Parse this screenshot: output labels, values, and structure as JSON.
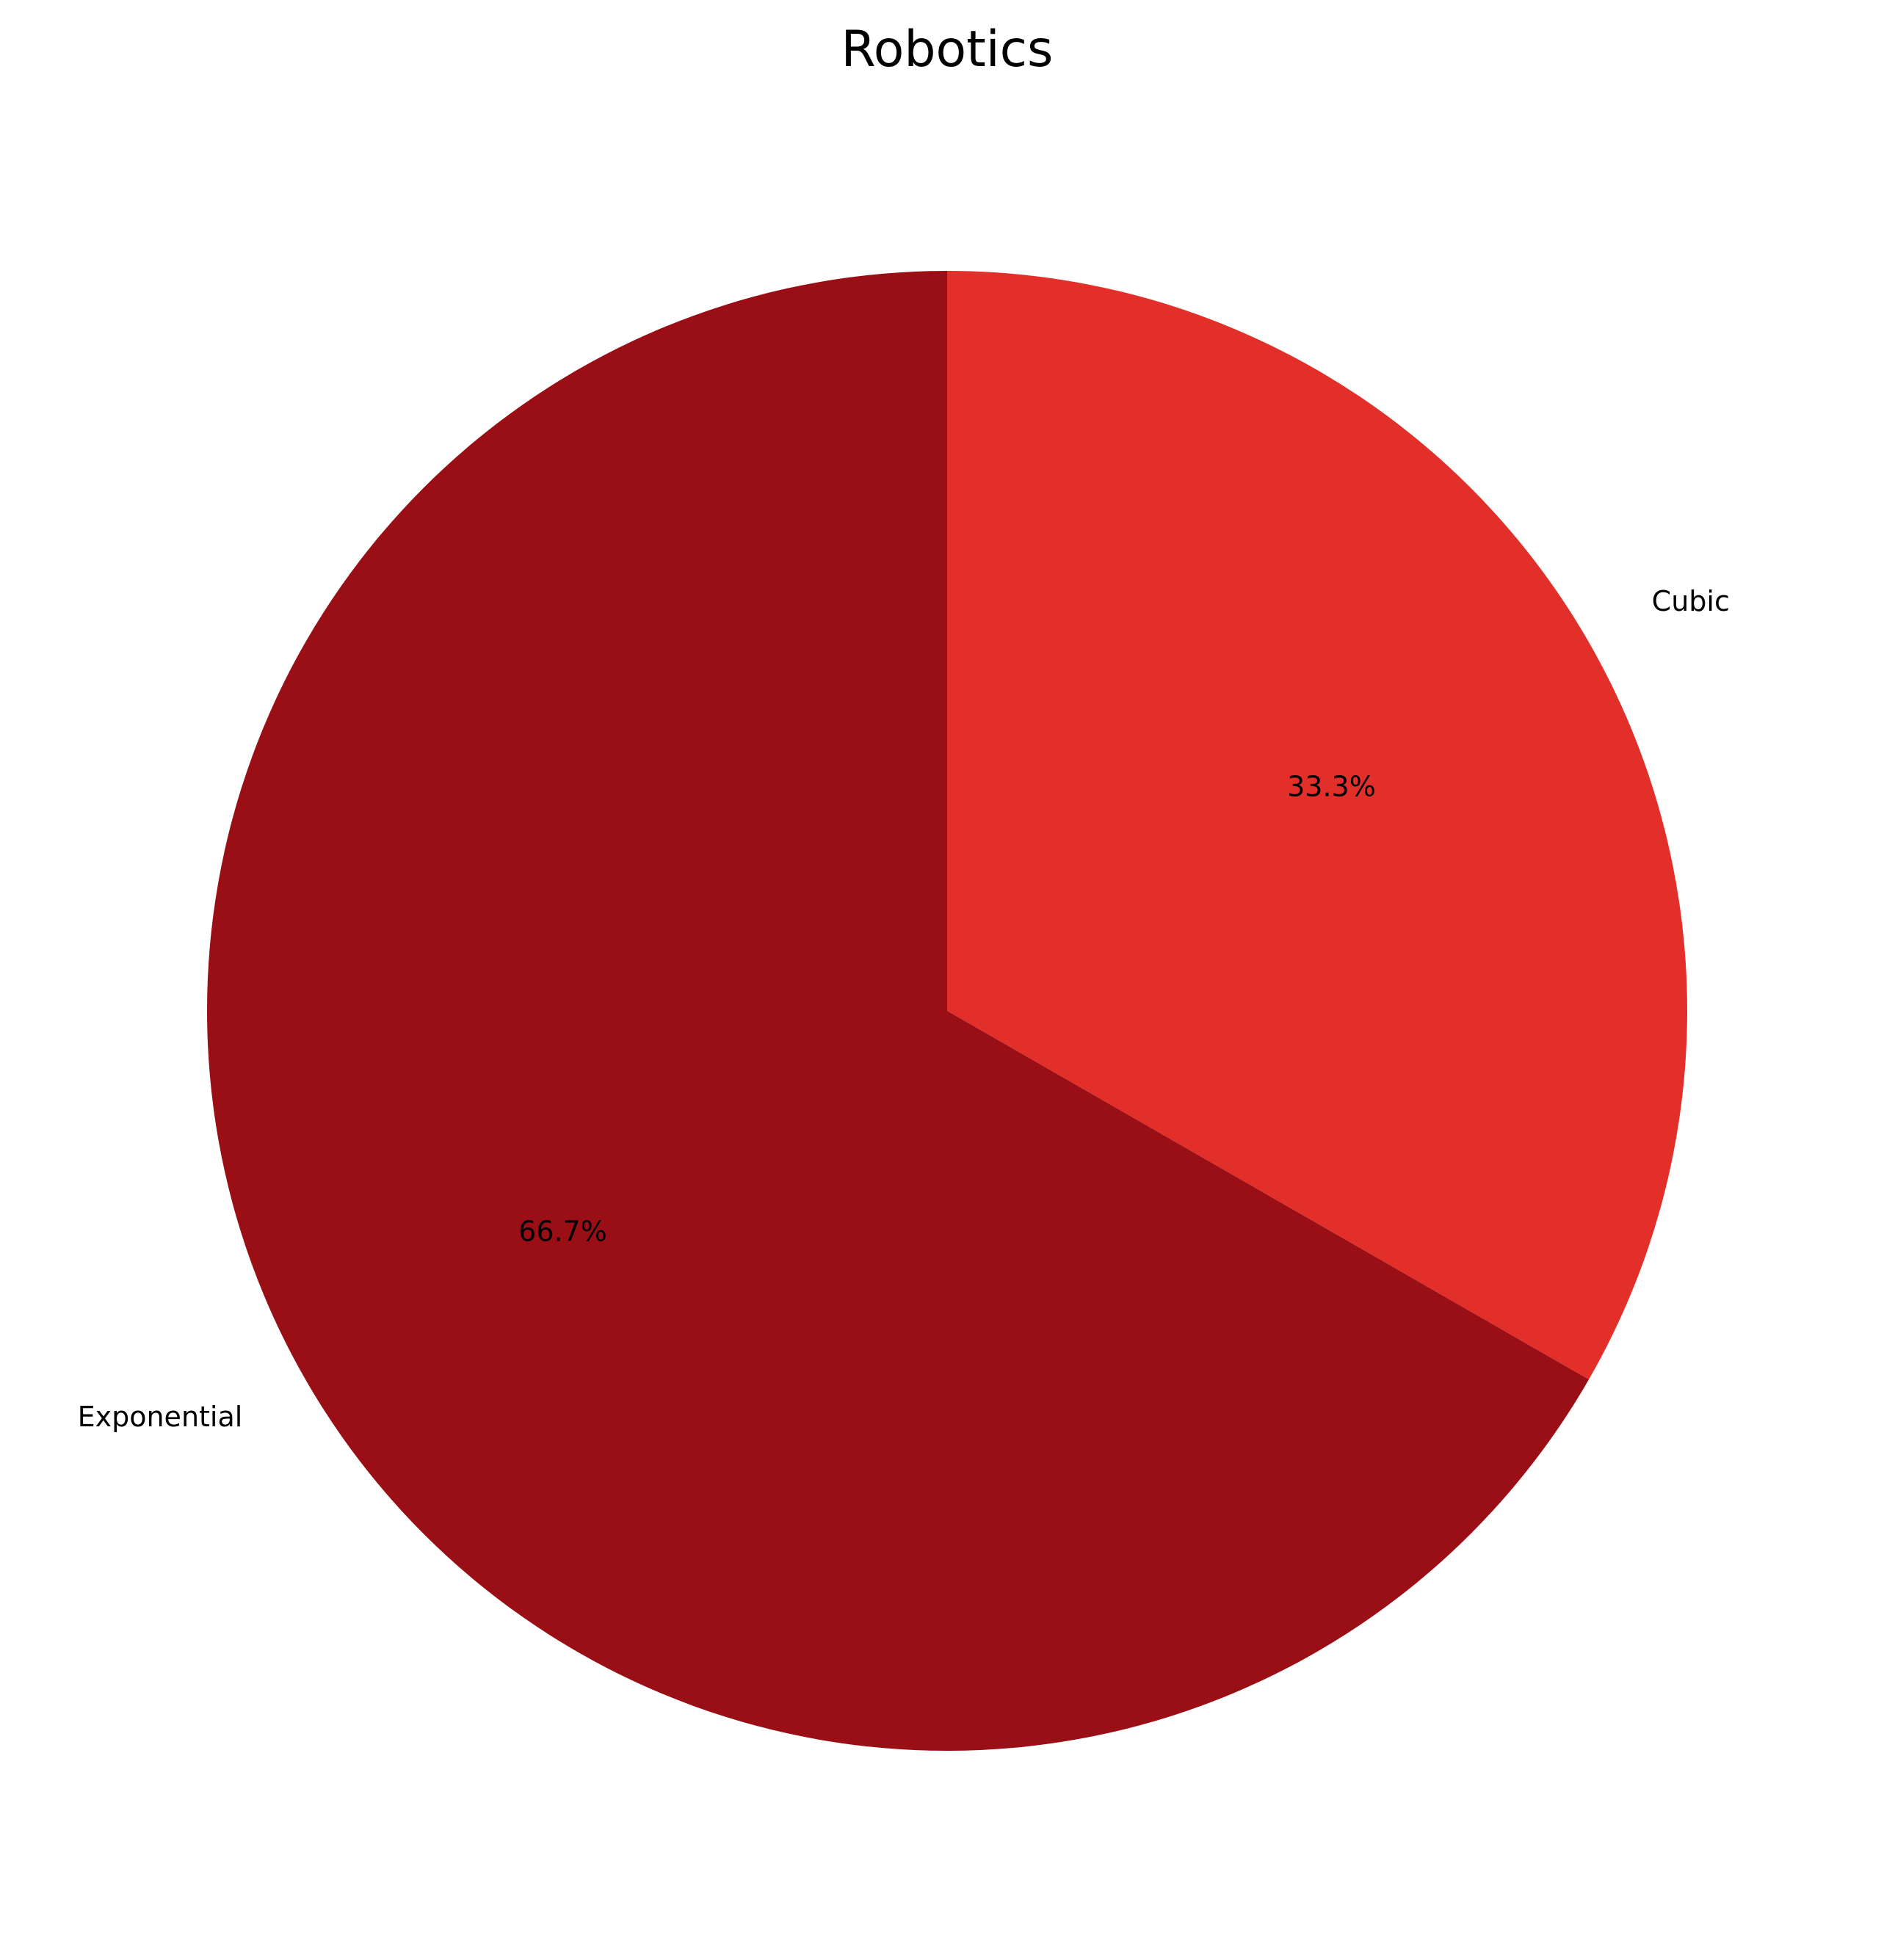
{
  "chart_data": {
    "type": "pie",
    "title": "Robotics",
    "start_angle_deg": 90,
    "direction": "clockwise",
    "slices": [
      {
        "label": "Cubic",
        "value": 33.3,
        "pct_label": "33.3%",
        "color": "#e32f2a"
      },
      {
        "label": "Exponential",
        "value": 66.7,
        "pct_label": "66.7%",
        "color": "#9a0e16"
      }
    ]
  }
}
